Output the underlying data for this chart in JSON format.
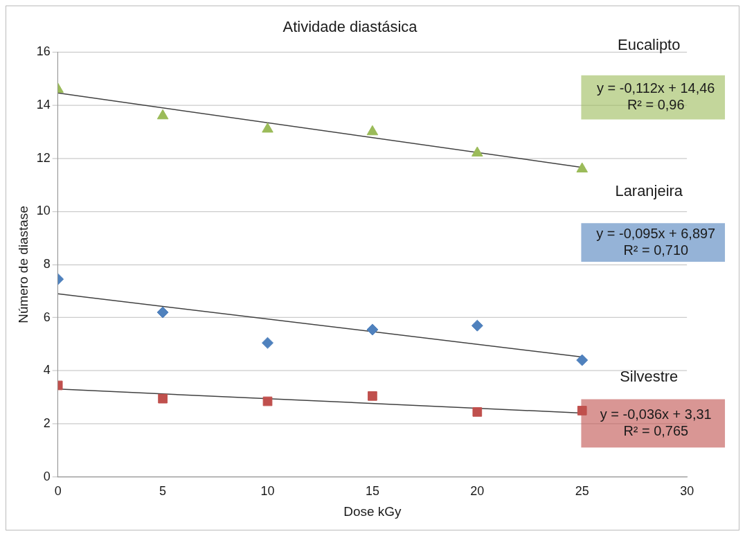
{
  "chart_data": {
    "type": "scatter",
    "title": "Atividade diastásica",
    "xlabel": "Dose kGy",
    "ylabel": "Número de diastase",
    "x": [
      0,
      5,
      10,
      15,
      20,
      25
    ],
    "xlim": [
      0,
      30
    ],
    "xticks": [
      0,
      5,
      10,
      15,
      20,
      25,
      30
    ],
    "ylim": [
      0,
      16
    ],
    "yticks": [
      0,
      2,
      4,
      6,
      8,
      10,
      12,
      14,
      16
    ],
    "grid": "y",
    "legend": false,
    "series": [
      {
        "name": "Eucalipto",
        "color": "#9bbb59",
        "marker": "triangle",
        "values": [
          14.6,
          13.6,
          13.1,
          13.0,
          12.2,
          11.6
        ]
      },
      {
        "name": "Laranjeira",
        "color": "#4f81bd",
        "marker": "diamond",
        "values": [
          7.45,
          6.2,
          5.05,
          5.55,
          5.7,
          4.4
        ]
      },
      {
        "name": "Silvestre",
        "color": "#c0504d",
        "marker": "square",
        "values": [
          3.45,
          2.95,
          2.85,
          3.05,
          2.45,
          2.5
        ]
      },
      {
        "type": "line",
        "color": "#404040",
        "marker": "none",
        "values": [
          14.46,
          null,
          null,
          null,
          null,
          11.66
        ]
      },
      {
        "type": "line",
        "color": "#404040",
        "marker": "none",
        "values": [
          6.9,
          null,
          null,
          null,
          null,
          4.52
        ]
      },
      {
        "type": "line",
        "color": "#404040",
        "marker": "none",
        "values": [
          3.31,
          null,
          null,
          null,
          null,
          2.41
        ]
      }
    ],
    "annotations": [
      "y = -0,112x + 14,46\nR² = 0,96",
      "y = -0,095x + 6,897\nR² = 0,710",
      "y = -0,036x + 3,31\nR² = 0,765"
    ]
  }
}
